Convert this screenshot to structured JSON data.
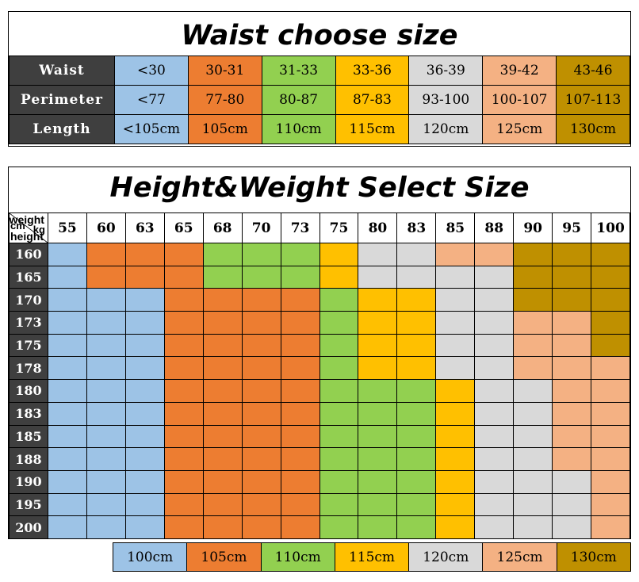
{
  "waist_section": {
    "title": "Waist choose size",
    "rows": [
      {
        "label": "Waist",
        "values": [
          "<30",
          "30-31",
          "31-33",
          "33-36",
          "36-39",
          "39-42",
          "43-46"
        ]
      },
      {
        "label": "Perimeter",
        "values": [
          "<77",
          "77-80",
          "80-87",
          "87-83",
          "93-100",
          "100-107",
          "107-113"
        ]
      },
      {
        "label": "Length",
        "values": [
          "<105cm",
          "105cm",
          "110cm",
          "115cm",
          "120cm",
          "125cm",
          "130cm"
        ]
      }
    ]
  },
  "size_colors": [
    "#9dc3e6",
    "#ed7d31",
    "#92d050",
    "#ffc000",
    "#d9d9d9",
    "#f4b183",
    "#bf9000"
  ],
  "hw_section": {
    "title": "Height&Weight Select Size",
    "corner": {
      "weight": "weight",
      "kg": "kg",
      "cm": "cm",
      "height": "height"
    },
    "weights": [
      "55",
      "60",
      "63",
      "65",
      "68",
      "70",
      "73",
      "75",
      "80",
      "83",
      "85",
      "88",
      "90",
      "95",
      "100"
    ],
    "heights": [
      "160",
      "165",
      "170",
      "173",
      "175",
      "178",
      "180",
      "183",
      "185",
      "188",
      "190",
      "195",
      "200"
    ],
    "grid": [
      [
        0,
        1,
        1,
        1,
        2,
        2,
        2,
        3,
        4,
        4,
        5,
        5,
        6,
        6,
        6
      ],
      [
        0,
        1,
        1,
        1,
        2,
        2,
        2,
        3,
        4,
        4,
        4,
        4,
        6,
        6,
        6
      ],
      [
        0,
        0,
        0,
        1,
        1,
        1,
        1,
        2,
        3,
        3,
        4,
        4,
        6,
        6,
        6
      ],
      [
        0,
        0,
        0,
        1,
        1,
        1,
        1,
        2,
        3,
        3,
        4,
        4,
        5,
        5,
        6
      ],
      [
        0,
        0,
        0,
        1,
        1,
        1,
        1,
        2,
        3,
        3,
        4,
        4,
        5,
        5,
        6
      ],
      [
        0,
        0,
        0,
        1,
        1,
        1,
        1,
        2,
        3,
        3,
        4,
        4,
        5,
        5,
        5
      ],
      [
        0,
        0,
        0,
        1,
        1,
        1,
        1,
        2,
        2,
        2,
        3,
        4,
        4,
        5,
        5
      ],
      [
        0,
        0,
        0,
        1,
        1,
        1,
        1,
        2,
        2,
        2,
        3,
        4,
        4,
        5,
        5
      ],
      [
        0,
        0,
        0,
        1,
        1,
        1,
        1,
        2,
        2,
        2,
        3,
        4,
        4,
        5,
        5
      ],
      [
        0,
        0,
        0,
        1,
        1,
        1,
        1,
        2,
        2,
        2,
        3,
        4,
        4,
        5,
        5
      ],
      [
        0,
        0,
        0,
        1,
        1,
        1,
        1,
        2,
        2,
        2,
        3,
        4,
        4,
        4,
        5
      ],
      [
        0,
        0,
        0,
        1,
        1,
        1,
        1,
        2,
        2,
        2,
        3,
        4,
        4,
        4,
        5
      ],
      [
        0,
        0,
        0,
        1,
        1,
        1,
        1,
        2,
        2,
        2,
        3,
        4,
        4,
        4,
        5
      ]
    ]
  },
  "legend": [
    "100cm",
    "105cm",
    "110cm",
    "115cm",
    "120cm",
    "125cm",
    "130cm"
  ]
}
